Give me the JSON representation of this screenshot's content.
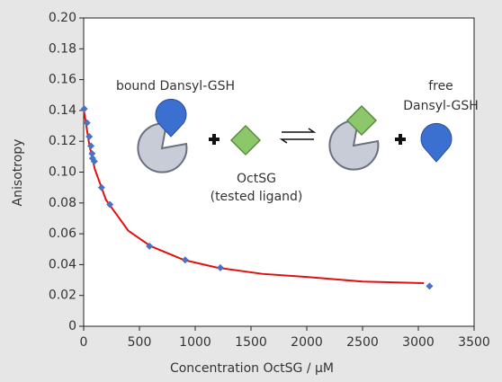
{
  "chart_data": {
    "type": "scatter",
    "xlabel": "Concentration OctSG / μM",
    "ylabel": "Anisotropy",
    "xlim": [
      0,
      3500
    ],
    "xticks": [
      0,
      500,
      1000,
      1500,
      2000,
      2500,
      3000,
      3500
    ],
    "ylim": [
      0,
      0.2
    ],
    "yticks": [
      0,
      0.02,
      0.04,
      0.06,
      0.08,
      {
        "value": 0.1,
        "label": "0.10"
      },
      0.12,
      0.14,
      0.16,
      0.18,
      {
        "value": 0.2,
        "label": "0.20"
      }
    ],
    "series": [
      {
        "type": "scatter",
        "color": "#4a72c4",
        "x": [
          5,
          30,
          50,
          65,
          75,
          80,
          95,
          160,
          235,
          590,
          910,
          1225,
          3100
        ],
        "values": [
          0.141,
          0.132,
          0.123,
          0.117,
          0.112,
          0.109,
          0.107,
          0.09,
          0.079,
          0.052,
          0.043,
          0.038,
          0.026
        ]
      },
      {
        "type": "line",
        "color": "#e01010",
        "x": [
          0,
          50,
          100,
          200,
          400,
          600,
          900,
          1200,
          1600,
          2000,
          2500,
          3050
        ],
        "values": [
          0.141,
          0.118,
          0.102,
          0.082,
          0.062,
          0.052,
          0.043,
          0.038,
          0.034,
          0.032,
          0.029,
          0.028
        ]
      }
    ],
    "annotations": [
      "bound Dansyl-GSH",
      "free",
      "Dansyl-GSH",
      "OctSG",
      "(tested ligand)"
    ]
  }
}
